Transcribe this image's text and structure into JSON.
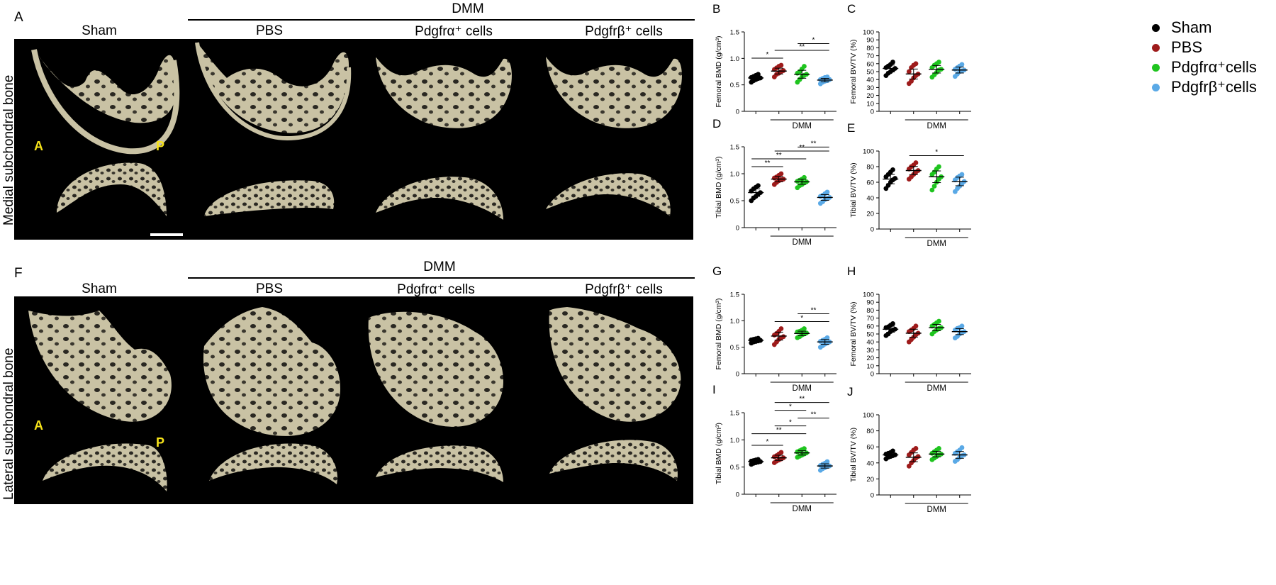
{
  "panels": {
    "A": "A",
    "F": "F"
  },
  "header": {
    "dmm": "DMM",
    "sham": "Sham",
    "pbs": "PBS",
    "alpha_cells": "Pdgfrα⁺ cells",
    "beta_cells": "Pdgfrβ⁺ cells"
  },
  "rows": {
    "medial": "Medial subchondral bone",
    "lateral": "Lateral subchondral bone"
  },
  "orientation": {
    "anterior": "A",
    "posterior": "P"
  },
  "colors": {
    "bone": "#c9c2a4",
    "sham": "#000000",
    "pbs": "#9e1b1b",
    "alpha": "#1fc41f",
    "beta": "#5aa9e6",
    "orientation_label": "#f5e21a"
  },
  "legend": [
    {
      "label": "Sham",
      "color": "#000000"
    },
    {
      "label": "PBS",
      "color": "#9e1b1b"
    },
    {
      "label": "Pdgfrα⁺cells",
      "color": "#1fc41f"
    },
    {
      "label": "Pdgfrβ⁺cells",
      "color": "#5aa9e6"
    }
  ],
  "chart_data": [
    {
      "panel": "B",
      "type": "scatter",
      "ylabel": "Femoral BMD (g/cm³)",
      "ylim": [
        0,
        1.5
      ],
      "yticks": [
        0,
        0.5,
        1.0,
        1.5
      ],
      "bracket": "DMM",
      "groups": [
        "Sham",
        "PBS",
        "Pdgfrα⁺cells",
        "Pdgfrβ⁺cells"
      ],
      "values": [
        [
          0.55,
          0.58,
          0.6,
          0.62,
          0.63,
          0.64,
          0.66,
          0.68,
          0.7
        ],
        [
          0.65,
          0.7,
          0.72,
          0.75,
          0.77,
          0.79,
          0.82,
          0.85,
          0.87
        ],
        [
          0.55,
          0.6,
          0.65,
          0.68,
          0.7,
          0.72,
          0.75,
          0.8,
          0.85
        ],
        [
          0.52,
          0.55,
          0.57,
          0.58,
          0.6,
          0.6,
          0.62,
          0.64,
          0.65
        ]
      ],
      "means": [
        0.63,
        0.76,
        0.7,
        0.59
      ],
      "significance": [
        {
          "from": 0,
          "to": 1,
          "label": "*"
        },
        {
          "from": 1,
          "to": 3,
          "label": "**"
        },
        {
          "from": 2,
          "to": 3,
          "label": "*"
        }
      ]
    },
    {
      "panel": "C",
      "type": "scatter",
      "ylabel": "Femoral BV/TV (%)",
      "ylim": [
        0,
        100
      ],
      "yticks": [
        0,
        10,
        20,
        30,
        40,
        50,
        60,
        70,
        80,
        90,
        100
      ],
      "bracket": "DMM",
      "groups": [
        "Sham",
        "PBS",
        "Pdgfrα⁺cells",
        "Pdgfrβ⁺cells"
      ],
      "values": [
        [
          45,
          48,
          50,
          52,
          54,
          55,
          57,
          59,
          62
        ],
        [
          35,
          38,
          42,
          45,
          47,
          50,
          55,
          58,
          60
        ],
        [
          43,
          46,
          49,
          52,
          53,
          55,
          58,
          60,
          62
        ],
        [
          44,
          47,
          50,
          51,
          52,
          53,
          55,
          57,
          59
        ]
      ],
      "means": [
        54,
        47,
        53,
        52
      ],
      "significance": []
    },
    {
      "panel": "D",
      "type": "scatter",
      "ylabel": "Tibial BMD (g/cm³)",
      "ylim": [
        0,
        1.5
      ],
      "yticks": [
        0,
        0.5,
        1.0,
        1.5
      ],
      "bracket": "DMM",
      "groups": [
        "Sham",
        "PBS",
        "Pdgfrα⁺cells",
        "Pdgfrβ⁺cells"
      ],
      "values": [
        [
          0.5,
          0.55,
          0.58,
          0.62,
          0.65,
          0.68,
          0.72,
          0.75,
          0.78
        ],
        [
          0.8,
          0.84,
          0.87,
          0.89,
          0.9,
          0.92,
          0.94,
          0.97,
          1.0
        ],
        [
          0.74,
          0.78,
          0.8,
          0.83,
          0.85,
          0.86,
          0.88,
          0.9,
          0.93
        ],
        [
          0.45,
          0.48,
          0.52,
          0.54,
          0.56,
          0.58,
          0.6,
          0.63,
          0.66
        ]
      ],
      "means": [
        0.65,
        0.9,
        0.85,
        0.56
      ],
      "significance": [
        {
          "from": 0,
          "to": 1,
          "label": "**"
        },
        {
          "from": 0,
          "to": 2,
          "label": "**"
        },
        {
          "from": 1,
          "to": 3,
          "label": "**"
        },
        {
          "from": 2,
          "to": 3,
          "label": "**"
        }
      ]
    },
    {
      "panel": "E",
      "type": "scatter",
      "ylabel": "Tibial BV/TV (%)",
      "ylim": [
        0,
        100
      ],
      "yticks": [
        0,
        20,
        40,
        60,
        80,
        100
      ],
      "bracket": "DMM",
      "groups": [
        "Sham",
        "PBS",
        "Pdgfrα⁺cells",
        "Pdgfrβ⁺cells"
      ],
      "values": [
        [
          52,
          56,
          60,
          63,
          65,
          67,
          70,
          73,
          76
        ],
        [
          64,
          67,
          70,
          73,
          75,
          77,
          80,
          82,
          85
        ],
        [
          50,
          55,
          60,
          64,
          67,
          70,
          73,
          77,
          80
        ],
        [
          48,
          52,
          55,
          58,
          61,
          63,
          66,
          68,
          70
        ]
      ],
      "means": [
        64,
        75,
        67,
        61
      ],
      "significance": [
        {
          "from": 1,
          "to": 3,
          "label": "*"
        }
      ]
    },
    {
      "panel": "G",
      "type": "scatter",
      "ylabel": "Femoral BMD (g/cm³)",
      "ylim": [
        0,
        1.5
      ],
      "yticks": [
        0,
        0.5,
        1.0,
        1.5
      ],
      "bracket": "DMM",
      "groups": [
        "Sham",
        "PBS",
        "Pdgfrα⁺cells",
        "Pdgfrβ⁺cells"
      ],
      "values": [
        [
          0.58,
          0.6,
          0.61,
          0.62,
          0.63,
          0.64,
          0.65,
          0.66,
          0.67
        ],
        [
          0.55,
          0.6,
          0.65,
          0.68,
          0.7,
          0.73,
          0.76,
          0.8,
          0.85
        ],
        [
          0.68,
          0.7,
          0.73,
          0.75,
          0.77,
          0.79,
          0.8,
          0.82,
          0.85
        ],
        [
          0.5,
          0.53,
          0.56,
          0.58,
          0.6,
          0.61,
          0.63,
          0.65,
          0.68
        ]
      ],
      "means": [
        0.63,
        0.71,
        0.76,
        0.6
      ],
      "significance": [
        {
          "from": 1,
          "to": 3,
          "label": "*"
        },
        {
          "from": 2,
          "to": 3,
          "label": "**"
        }
      ]
    },
    {
      "panel": "H",
      "type": "scatter",
      "ylabel": "Femoral BV/TV (%)",
      "ylim": [
        0,
        100
      ],
      "yticks": [
        0,
        10,
        20,
        30,
        40,
        50,
        60,
        70,
        80,
        90,
        100
      ],
      "bracket": "DMM",
      "groups": [
        "Sham",
        "PBS",
        "Pdgfrα⁺cells",
        "Pdgfrβ⁺cells"
      ],
      "values": [
        [
          48,
          50,
          53,
          55,
          56,
          58,
          59,
          61,
          63
        ],
        [
          40,
          43,
          46,
          49,
          51,
          53,
          55,
          57,
          60
        ],
        [
          50,
          53,
          55,
          57,
          58,
          60,
          62,
          64,
          66
        ],
        [
          45,
          47,
          50,
          52,
          53,
          55,
          57,
          58,
          60
        ]
      ],
      "means": [
        56,
        51,
        58,
        53
      ],
      "significance": []
    },
    {
      "panel": "I",
      "type": "scatter",
      "ylabel": "Tibial BMD (g/cm³)",
      "ylim": [
        0,
        1.5
      ],
      "yticks": [
        0,
        0.5,
        1.0,
        1.5
      ],
      "bracket": "DMM",
      "groups": [
        "Sham",
        "PBS",
        "Pdgfrα⁺cells",
        "Pdgfrβ⁺cells"
      ],
      "values": [
        [
          0.55,
          0.57,
          0.58,
          0.59,
          0.6,
          0.61,
          0.62,
          0.63,
          0.64
        ],
        [
          0.58,
          0.61,
          0.63,
          0.65,
          0.67,
          0.69,
          0.71,
          0.74,
          0.77
        ],
        [
          0.68,
          0.7,
          0.72,
          0.74,
          0.76,
          0.78,
          0.8,
          0.82,
          0.84
        ],
        [
          0.44,
          0.47,
          0.49,
          0.51,
          0.52,
          0.53,
          0.55,
          0.57,
          0.6
        ]
      ],
      "means": [
        0.6,
        0.67,
        0.76,
        0.52
      ],
      "significance": [
        {
          "from": 0,
          "to": 1,
          "label": "*"
        },
        {
          "from": 0,
          "to": 2,
          "label": "**"
        },
        {
          "from": 1,
          "to": 2,
          "label": "*"
        },
        {
          "from": 2,
          "to": 3,
          "label": "**"
        },
        {
          "from": 1,
          "to": 2,
          "label": "*"
        },
        {
          "from": 1,
          "to": 3,
          "label": "**"
        }
      ]
    },
    {
      "panel": "J",
      "type": "scatter",
      "ylabel": "Tibial BV/TV (%)",
      "ylim": [
        0,
        100
      ],
      "yticks": [
        0,
        20,
        40,
        60,
        80,
        100
      ],
      "bracket": "DMM",
      "groups": [
        "Sham",
        "PBS",
        "Pdgfrα⁺cells",
        "Pdgfrβ⁺cells"
      ],
      "values": [
        [
          45,
          47,
          48,
          49,
          50,
          51,
          52,
          53,
          55
        ],
        [
          36,
          40,
          43,
          46,
          48,
          50,
          53,
          56,
          58
        ],
        [
          44,
          46,
          48,
          50,
          51,
          52,
          54,
          56,
          58
        ],
        [
          42,
          44,
          47,
          49,
          50,
          52,
          54,
          56,
          59
        ]
      ],
      "means": [
        50,
        47,
        51,
        50
      ],
      "significance": []
    }
  ]
}
